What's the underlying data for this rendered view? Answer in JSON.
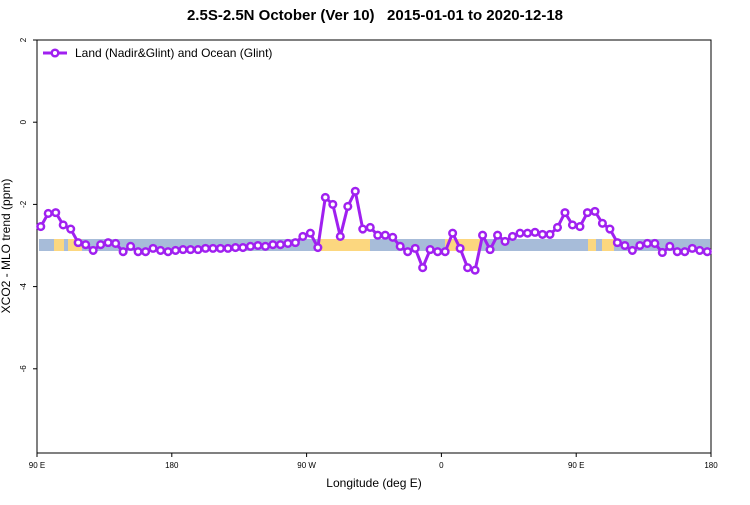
{
  "chart_data": {
    "type": "line",
    "title": "2.5S-2.5N October (Ver 10)   2015-01-01 to 2020-12-18",
    "x_label": "Longitude (deg E)",
    "y_label": "XCO2 - MLO trend (ppm)",
    "xlim": [
      90,
      540
    ],
    "xticks": [
      {
        "value": 90,
        "label": "90 E"
      },
      {
        "value": 180,
        "label": "180"
      },
      {
        "value": 270,
        "label": "90 W"
      },
      {
        "value": 360,
        "label": "0"
      },
      {
        "value": 450,
        "label": "90 E"
      },
      {
        "value": 540,
        "label": "180"
      }
    ],
    "ylim": [
      -8,
      2
    ],
    "yticks": [
      -6,
      -4,
      -2,
      0,
      2
    ],
    "legend": "top-left",
    "x": [
      92.5,
      97.5,
      102.5,
      107.5,
      112.5,
      117.5,
      122.5,
      127.5,
      132.5,
      137.5,
      142.5,
      147.5,
      152.5,
      157.5,
      162.5,
      167.5,
      172.5,
      177.5,
      182.5,
      187.5,
      192.5,
      197.5,
      202.5,
      207.5,
      212.5,
      217.5,
      222.5,
      227.5,
      232.5,
      237.5,
      242.5,
      247.5,
      252.5,
      257.5,
      262.5,
      267.5,
      272.5,
      277.5,
      282.5,
      287.5,
      292.5,
      297.5,
      302.5,
      307.5,
      312.5,
      317.5,
      322.5,
      327.5,
      332.5,
      337.5,
      342.5,
      347.5,
      352.5,
      357.5,
      362.5,
      367.5,
      372.5,
      377.5,
      382.5,
      387.5,
      392.5,
      397.5,
      402.5,
      407.5,
      412.5,
      417.5,
      422.5,
      427.5,
      432.5,
      437.5,
      442.5,
      447.5,
      452.5,
      457.5,
      462.5,
      467.5,
      472.5,
      477.5,
      482.5,
      487.5,
      492.5,
      497.5,
      502.5,
      507.5,
      512.5,
      517.5,
      522.5,
      527.5,
      532.5,
      537.5
    ],
    "series": [
      {
        "name": "Land (Nadir&Glint) and Ocean (Glint)",
        "color": "#a020f0",
        "values": [
          -2.54,
          -2.22,
          -2.2,
          -2.5,
          -2.6,
          -2.93,
          -2.98,
          -3.12,
          -2.98,
          -2.93,
          -2.95,
          -3.15,
          -3.02,
          -3.15,
          -3.15,
          -3.07,
          -3.12,
          -3.15,
          -3.12,
          -3.1,
          -3.1,
          -3.1,
          -3.07,
          -3.07,
          -3.07,
          -3.07,
          -3.05,
          -3.05,
          -3.02,
          -3.0,
          -3.02,
          -2.98,
          -2.98,
          -2.95,
          -2.93,
          -2.78,
          -2.7,
          -3.05,
          -1.83,
          -2.0,
          -2.78,
          -2.05,
          -1.68,
          -2.6,
          -2.56,
          -2.75,
          -2.75,
          -2.8,
          -3.02,
          -3.15,
          -3.07,
          -3.54,
          -3.1,
          -3.15,
          -3.15,
          -2.7,
          -3.07,
          -3.54,
          -3.6,
          -2.75,
          -3.1,
          -2.75,
          -2.9,
          -2.78,
          -2.7,
          -2.7,
          -2.68,
          -2.73,
          -2.73,
          -2.56,
          -2.2,
          -2.5,
          -2.54,
          -2.2,
          -2.17,
          -2.46,
          -2.6,
          -2.93,
          -3.0,
          -3.12,
          -3.0,
          -2.95,
          -2.95,
          -3.17,
          -3.02,
          -3.15,
          -3.15,
          -3.07,
          -3.12,
          -3.15
        ]
      }
    ]
  }
}
